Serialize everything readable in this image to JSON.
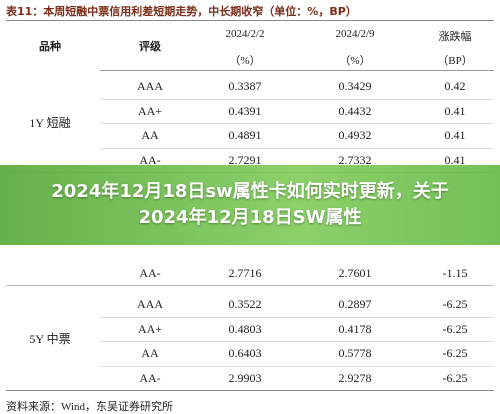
{
  "title": "表11：本周短融中票信用利差短期走势，中长期收窄（单位：%，BP）",
  "table": {
    "header": [
      "品种",
      "评级",
      "2024/2/2",
      "2024/2/9",
      "涨跌幅"
    ],
    "units": [
      "（%）",
      "（%）",
      "（BP）"
    ],
    "groups": [
      {
        "name": "1Y 短融",
        "rows": [
          [
            "AAA",
            "0.3387",
            "0.3429",
            "0.42"
          ],
          [
            "AA+",
            "0.4391",
            "0.4432",
            "0.41"
          ],
          [
            "AA",
            "0.4891",
            "0.4932",
            "0.41"
          ],
          [
            "AA-",
            "2.7291",
            "2.7332",
            "0.41"
          ]
        ]
      },
      {
        "rows": [
          [
            "AA-",
            "2.7716",
            "2.7601",
            "-1.15"
          ]
        ]
      },
      {
        "name": "5Y 中票",
        "rows": [
          [
            "AAA",
            "0.3522",
            "0.2897",
            "-6.25"
          ],
          [
            "AA+",
            "0.4803",
            "0.4178",
            "-6.25"
          ],
          [
            "AA",
            "0.6403",
            "0.5778",
            "-6.25"
          ],
          [
            "AA-",
            "2.9903",
            "2.9278",
            "-6.25"
          ]
        ]
      }
    ]
  },
  "source": "资料来源：Wind，东吴证券研究所",
  "banner": {
    "lines": [
      "2024年12月18日sw属性卡如何实时更新，关于2024年12月18日SW属性"
    ]
  }
}
